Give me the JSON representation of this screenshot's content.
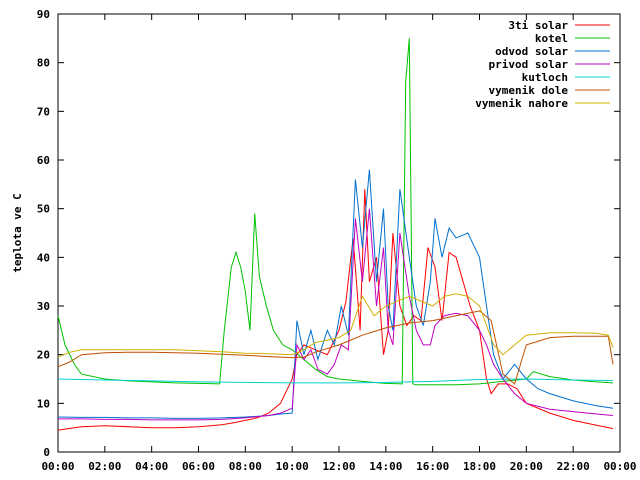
{
  "chart_data": {
    "type": "line",
    "title": "",
    "xlabel": "",
    "ylabel": "teplota ve C",
    "xlim": [
      0,
      24
    ],
    "ylim": [
      0,
      90
    ],
    "grid": false,
    "legend_position": "top-right",
    "x_ticks": [
      "00:00",
      "02:00",
      "04:00",
      "06:00",
      "08:00",
      "10:00",
      "12:00",
      "14:00",
      "16:00",
      "18:00",
      "20:00",
      "22:00",
      "00:00"
    ],
    "y_ticks": [
      "0",
      "10",
      "20",
      "30",
      "40",
      "50",
      "60",
      "70",
      "80",
      "90"
    ],
    "series": [
      {
        "name": "3ti solar",
        "color": "#ff0000",
        "x": [
          0,
          1,
          2,
          3,
          4,
          5,
          6,
          7,
          7.5,
          8,
          8.5,
          9,
          9.5,
          10,
          10.2,
          10.5,
          11,
          11.5,
          12,
          12.3,
          12.6,
          12.9,
          13.1,
          13.3,
          13.6,
          13.9,
          14.1,
          14.3,
          14.6,
          14.9,
          15.2,
          15.5,
          15.8,
          16.1,
          16.4,
          16.7,
          17,
          17.3,
          17.6,
          18,
          18.3,
          18.5,
          18.8,
          19.2,
          19.6,
          20,
          21,
          22,
          23,
          23.7
        ],
        "y": [
          4.5,
          5.2,
          5.4,
          5.2,
          5,
          5,
          5.2,
          5.6,
          6,
          6.5,
          7,
          8,
          10,
          15,
          20,
          22,
          21,
          20,
          25,
          31,
          44,
          25,
          54,
          35,
          40,
          20,
          25,
          45,
          30,
          26,
          28,
          27,
          42,
          38,
          27,
          41,
          40,
          35,
          30,
          25,
          15,
          12,
          14,
          14,
          13,
          10,
          8,
          6.5,
          5.5,
          4.8
        ]
      },
      {
        "name": "kotel",
        "color": "#00c000",
        "x": [
          0,
          0.3,
          0.7,
          1,
          2,
          3,
          4,
          5,
          6,
          6.9,
          7.1,
          7.4,
          7.6,
          7.8,
          8,
          8.2,
          8.4,
          8.6,
          8.9,
          9.2,
          9.6,
          10,
          10.5,
          11,
          11.5,
          12,
          13,
          14,
          14.7,
          14.85,
          15,
          15.15,
          15.3,
          16,
          17,
          18,
          19,
          20,
          20.3,
          21,
          22,
          23,
          23.7
        ],
        "y": [
          28,
          22,
          18,
          16,
          15,
          14.6,
          14.4,
          14.2,
          14.1,
          14,
          25,
          38,
          41,
          38,
          33,
          25,
          49,
          36,
          30,
          25,
          22,
          21,
          19,
          17,
          15.5,
          15,
          14.5,
          14.1,
          14,
          76,
          85,
          14,
          13.8,
          13.8,
          13.8,
          14,
          14.5,
          15,
          16.5,
          15.5,
          14.8,
          14.4,
          14.2
        ]
      },
      {
        "name": "odvod solar",
        "color": "#0070d0",
        "x": [
          0,
          1,
          2,
          3,
          4,
          5,
          6,
          7,
          8,
          9,
          9.5,
          10,
          10.2,
          10.5,
          10.8,
          11.1,
          11.5,
          11.8,
          12.1,
          12.4,
          12.7,
          13,
          13.3,
          13.6,
          13.9,
          14.1,
          14.3,
          14.6,
          15,
          15.3,
          15.6,
          15.9,
          16.1,
          16.4,
          16.7,
          17,
          17.5,
          18,
          18.3,
          18.6,
          19,
          19.5,
          20,
          20.5,
          21,
          22,
          23,
          23.7
        ],
        "y": [
          7.2,
          7.1,
          7.1,
          7,
          7,
          6.9,
          6.9,
          7,
          7.2,
          7.5,
          7.8,
          8,
          27,
          20,
          25,
          19,
          25,
          22,
          30,
          24,
          56,
          42,
          58,
          35,
          50,
          30,
          25,
          54,
          40,
          30,
          26,
          35,
          48,
          40,
          46,
          44,
          45,
          40,
          30,
          20,
          15,
          18,
          15,
          13,
          12,
          10.5,
          9.5,
          9
        ]
      },
      {
        "name": "privod solar",
        "color": "#c000c0",
        "x": [
          0,
          1,
          2,
          3,
          4,
          5,
          6,
          7,
          8,
          9,
          9.5,
          10,
          10.2,
          10.5,
          10.8,
          11.1,
          11.5,
          11.8,
          12.1,
          12.4,
          12.7,
          13,
          13.3,
          13.6,
          13.9,
          14.1,
          14.3,
          14.6,
          15,
          15.3,
          15.6,
          15.9,
          16.1,
          16.5,
          17,
          17.5,
          18,
          18.3,
          18.6,
          19,
          19.5,
          20,
          21,
          22,
          23,
          23.7
        ],
        "y": [
          6.8,
          6.8,
          6.7,
          6.7,
          6.6,
          6.6,
          6.6,
          6.7,
          7,
          7.5,
          8,
          9,
          22,
          19,
          21,
          17,
          16,
          18,
          22,
          21,
          48,
          35,
          50,
          30,
          42,
          25,
          22,
          45,
          32,
          25,
          22,
          22,
          26,
          28,
          28.5,
          28,
          25,
          22,
          18,
          15,
          12,
          10,
          8.8,
          8.3,
          7.8,
          7.5
        ]
      },
      {
        "name": "kutloch",
        "color": "#00d0d0",
        "x": [
          0,
          2,
          4,
          6,
          8,
          10,
          12,
          14,
          16,
          18,
          20,
          22,
          23.7
        ],
        "y": [
          15,
          14.8,
          14.6,
          14.4,
          14.3,
          14.2,
          14.2,
          14.3,
          14.5,
          14.9,
          15,
          14.8,
          14.7
        ]
      },
      {
        "name": "vymenik dole",
        "color": "#c05000",
        "x": [
          0,
          0.5,
          1,
          2,
          3,
          4,
          5,
          6,
          7,
          8,
          9,
          10,
          10.5,
          11,
          12,
          12.5,
          13,
          14,
          15,
          16,
          17,
          18,
          18.5,
          19,
          19.5,
          20,
          21,
          22,
          23,
          23.5,
          23.7
        ],
        "y": [
          17.5,
          18.5,
          20,
          20.4,
          20.5,
          20.5,
          20.4,
          20.3,
          20.1,
          19.9,
          19.6,
          19.4,
          19.5,
          20.5,
          22,
          23,
          24,
          25.5,
          26.5,
          27,
          28,
          29,
          27,
          16,
          14,
          22,
          23.5,
          23.8,
          23.8,
          23.8,
          18
        ]
      },
      {
        "name": "vymenik nahore",
        "color": "#d0b000",
        "x": [
          0,
          0.5,
          1,
          2,
          3,
          4,
          5,
          6,
          7,
          8,
          9,
          10,
          10.5,
          11,
          11.5,
          12,
          12.5,
          13,
          13.5,
          14,
          14.5,
          15,
          15.5,
          16,
          16.5,
          17,
          17.5,
          18,
          18.3,
          18.6,
          19,
          19.5,
          20,
          21,
          22,
          23,
          23.5,
          23.7
        ],
        "y": [
          19.5,
          20.5,
          21,
          21,
          21,
          21,
          21,
          20.8,
          20.6,
          20.3,
          20.2,
          20,
          21,
          22.5,
          23,
          23.5,
          25,
          32,
          28,
          30,
          31,
          32,
          31,
          30,
          32,
          32.5,
          32,
          30,
          26,
          22,
          20,
          22,
          24,
          24.5,
          24.5,
          24.4,
          24,
          21.5
        ]
      }
    ]
  }
}
